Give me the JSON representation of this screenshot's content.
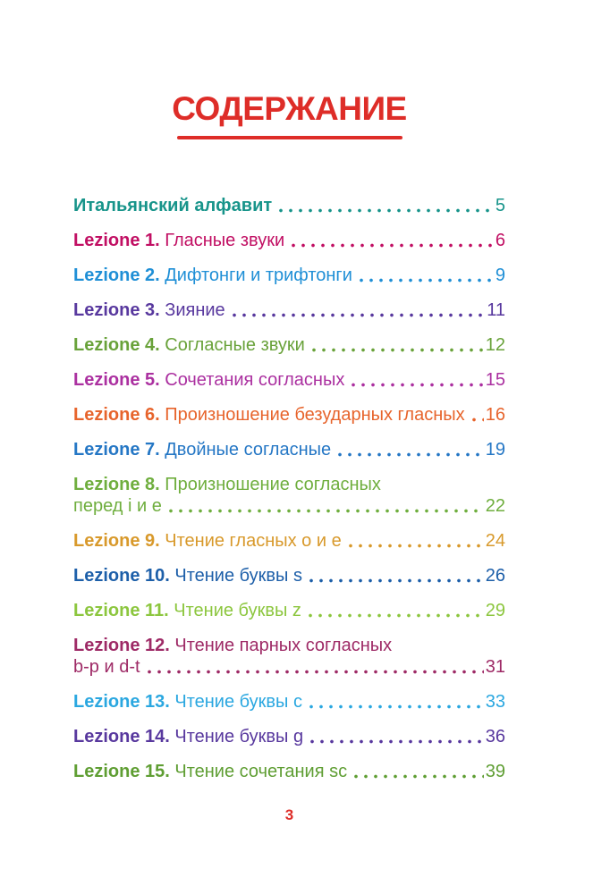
{
  "page": {
    "title": "СОДЕРЖАНИЕ",
    "title_color": "#de2d28",
    "footer_page_number": "3",
    "footer_color": "#de2d28"
  },
  "toc": {
    "items": [
      {
        "label": "Итальянский алфавит",
        "title": "",
        "page": "5",
        "color": "#17948a"
      },
      {
        "label": "Lezione 1.",
        "title": "Гласные звуки",
        "page": "6",
        "color": "#c10f63"
      },
      {
        "label": "Lezione 2.",
        "title": "Дифтонги и трифтонги",
        "page": "9",
        "color": "#1f8fd6"
      },
      {
        "label": "Lezione 3.",
        "title": "Зияние",
        "page": "11",
        "color": "#58389e"
      },
      {
        "label": "Lezione 4.",
        "title": "Согласные звуки",
        "page": "12",
        "color": "#69a23a"
      },
      {
        "label": "Lezione 5.",
        "title": "Сочетания согласных",
        "page": "15",
        "color": "#ab30a0"
      },
      {
        "label": "Lezione 6.",
        "title": "Произношение безударных гласных",
        "page": "16",
        "color": "#e7642c"
      },
      {
        "label": "Lezione 7.",
        "title": "Двойные согласные",
        "page": "19",
        "color": "#2577c5"
      },
      {
        "label": "Lezione 8.",
        "title": "Произношение согласных",
        "title2": "перед i и e",
        "page": "22",
        "color": "#6fae3e"
      },
      {
        "label": "Lezione 9.",
        "title": "Чтение гласных о и е",
        "page": "24",
        "color": "#d8992b"
      },
      {
        "label": "Lezione 10.",
        "title": "Чтение буквы s",
        "page": "26",
        "color": "#1d5fa9"
      },
      {
        "label": "Lezione 11.",
        "title": "Чтение буквы z",
        "page": "29",
        "color": "#8cc63e"
      },
      {
        "label": "Lezione 12.",
        "title": "Чтение парных согласных",
        "title2": "b-p и d-t",
        "page": "31",
        "color": "#9e2a66"
      },
      {
        "label": "Lezione 13.",
        "title": "Чтение буквы c",
        "page": "33",
        "color": "#2aa7e0"
      },
      {
        "label": "Lezione 14.",
        "title": "Чтение буквы g",
        "page": "36",
        "color": "#58389e"
      },
      {
        "label": "Lezione 15.",
        "title": "Чтение сочетания sc",
        "page": "39",
        "color": "#5f9e33"
      }
    ]
  }
}
